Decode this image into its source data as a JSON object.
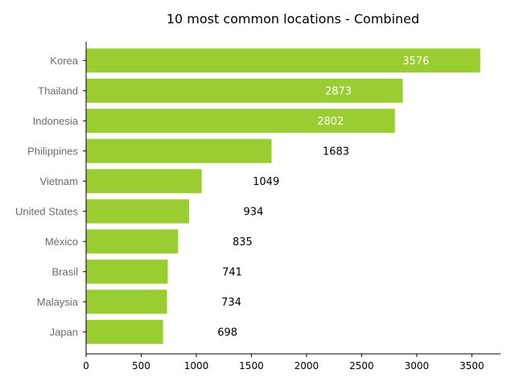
{
  "chart_data": {
    "type": "bar",
    "orientation": "horizontal",
    "title": "10 most common locations - Combined",
    "categories": [
      "Korea",
      "Thailand",
      "Indonesia",
      "Philippines",
      "Vietnam",
      "United States",
      "México",
      "Brasil",
      "Malaysia",
      "Japan"
    ],
    "values": [
      3576,
      2873,
      2802,
      1683,
      1049,
      934,
      835,
      741,
      734,
      698
    ],
    "data_labels": [
      "3576",
      "2873",
      "2802",
      "1683",
      "1049",
      "934",
      "835",
      "741",
      "734",
      "698"
    ],
    "xlabel": "",
    "ylabel": "",
    "xlim": [
      0,
      3760
    ],
    "xticks": [
      0,
      500,
      1000,
      1500,
      2000,
      2500,
      3000,
      3500
    ],
    "xtick_labels": [
      "0",
      "500",
      "1000",
      "1500",
      "2000",
      "2500",
      "3000",
      "3500"
    ],
    "grid": false,
    "legend": "none",
    "bar_color": "#9acd32"
  }
}
